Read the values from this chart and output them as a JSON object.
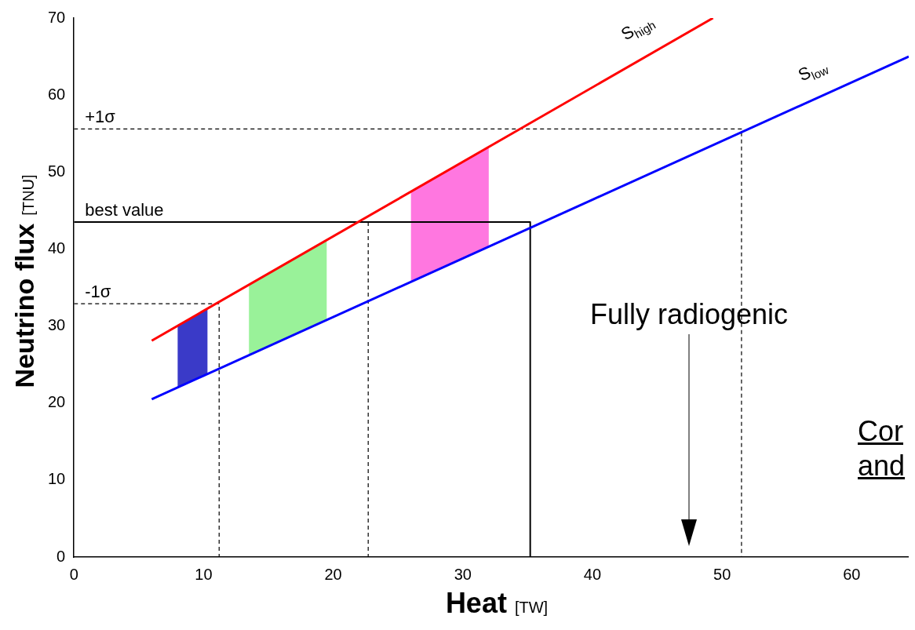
{
  "chart_data": {
    "type": "line",
    "xlabel": "Heat [TW]",
    "ylabel": "Neutrino flux [TNU]",
    "xlim": [
      0,
      64.4
    ],
    "xticks": [
      0,
      10,
      20,
      30,
      40,
      50,
      60
    ],
    "ylim": [
      0,
      70
    ],
    "yticks": [
      0,
      10,
      20,
      30,
      40,
      50,
      60,
      70
    ],
    "grid": false,
    "legend": false,
    "marker": "none",
    "series": [
      {
        "name": "S$_{high}$",
        "color": "#ff0000",
        "x": [
          6,
          49.3
        ],
        "values": [
          28.1,
          70
        ]
      },
      {
        "name": "S$_{low}$",
        "color": "#0000ff",
        "x": [
          6,
          64.4
        ],
        "values": [
          20.5,
          65
        ]
      },
      {
        "name": "+1σ",
        "color": "#000000",
        "line_style": "dashed",
        "x": [
          0,
          51.5,
          51.5
        ],
        "values": [
          55.6,
          55.6,
          0
        ]
      },
      {
        "name": "best value",
        "color": "#000000",
        "line_style": "solid",
        "x": [
          0,
          35.2,
          35.2
        ],
        "values": [
          43.5,
          43.5,
          0
        ]
      },
      {
        "color": "#000000",
        "line_style": "dashed",
        "x": [
          22.7,
          22.7
        ],
        "values": [
          43.5,
          0
        ]
      },
      {
        "name": "-1σ",
        "color": "#000000",
        "line_style": "dashed",
        "x": [
          0,
          11.2,
          11.2
        ],
        "values": [
          32.9,
          32.9,
          0
        ]
      }
    ],
    "bands": [
      {
        "axis": "x",
        "from": 8,
        "to": 10.3,
        "color": "#3a3ac8"
      },
      {
        "axis": "x",
        "from": 13.5,
        "to": 19.5,
        "color": "#99f299"
      },
      {
        "axis": "x",
        "from": 26,
        "to": 32,
        "color": "#ff77e0"
      }
    ],
    "annotations": [
      "Fully radiogenic",
      "Cor",
      "and"
    ]
  }
}
